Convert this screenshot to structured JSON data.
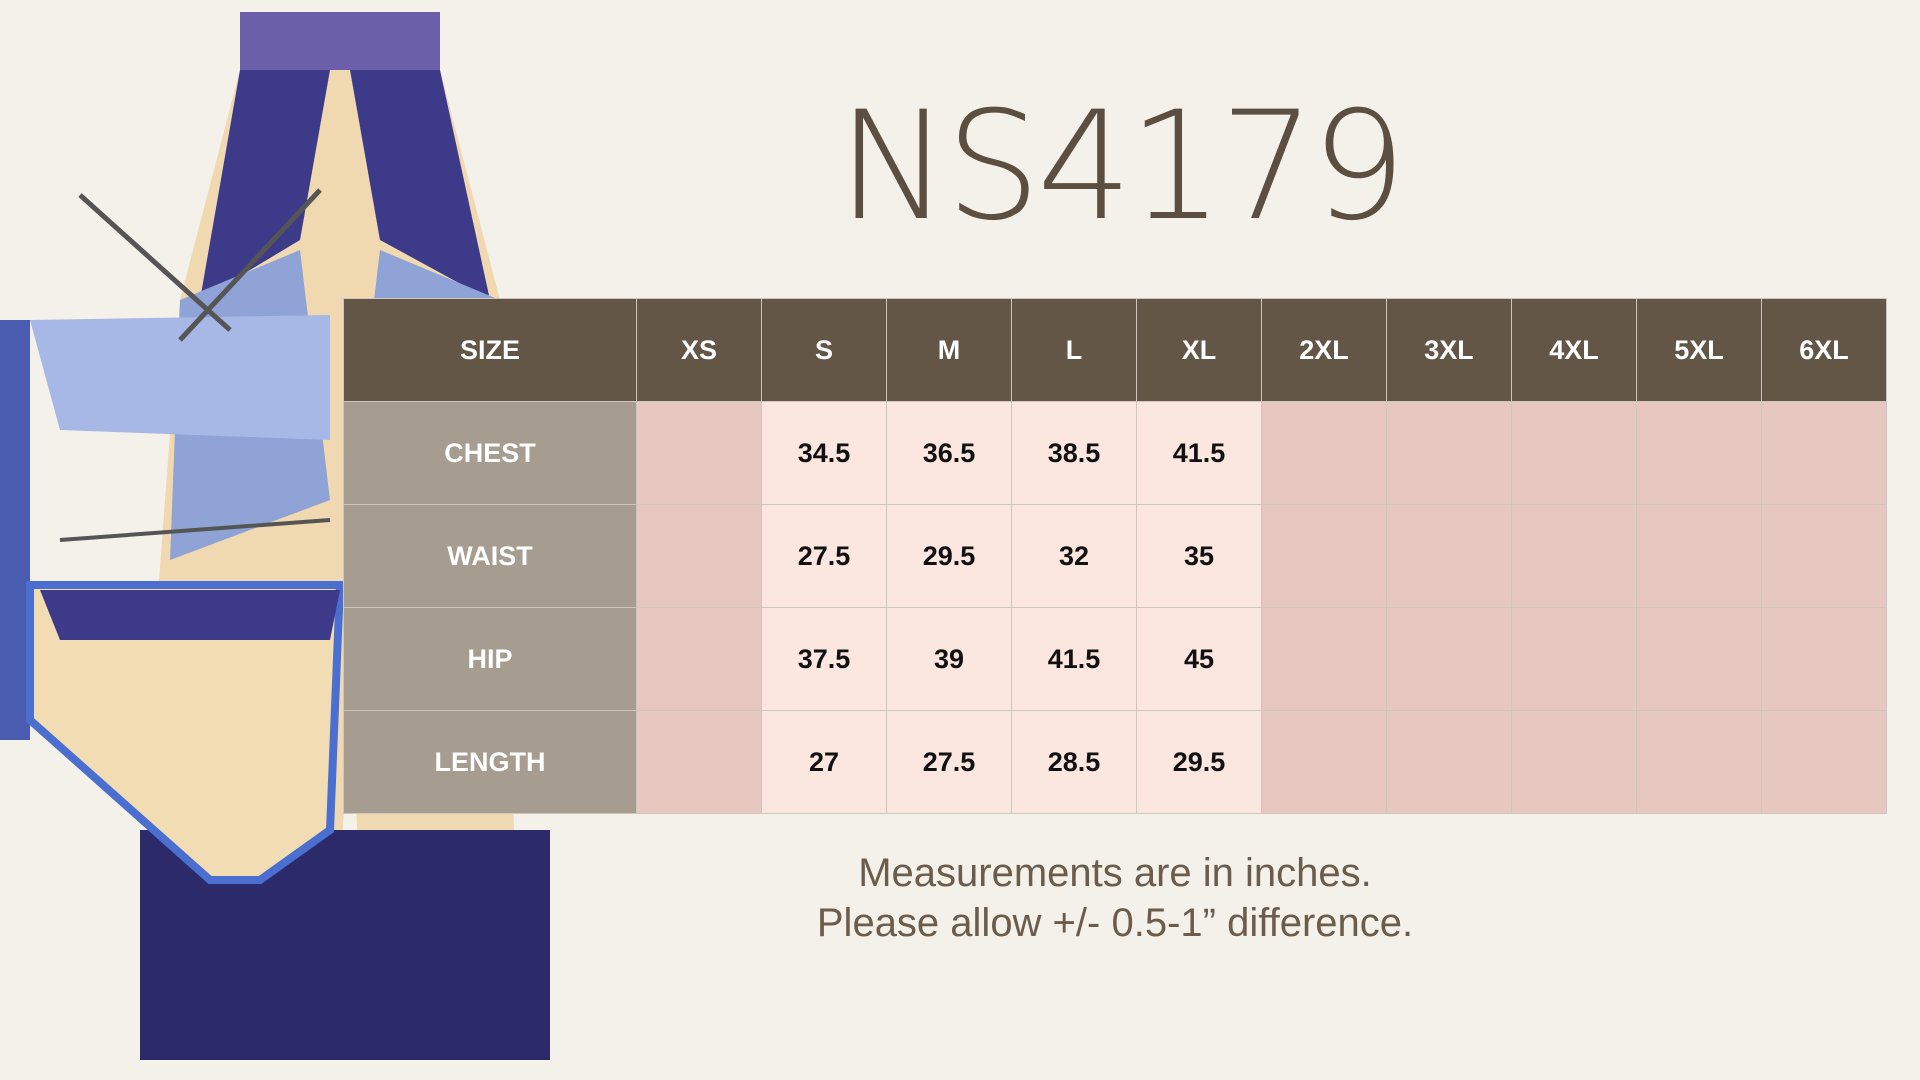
{
  "title": "NS4179",
  "table": {
    "headers": [
      "SIZE",
      "XS",
      "S",
      "M",
      "L",
      "XL",
      "2XL",
      "3XL",
      "4XL",
      "5XL",
      "6XL"
    ],
    "rows": [
      {
        "label": "CHEST",
        "values": [
          "",
          "34.5",
          "36.5",
          "38.5",
          "41.5",
          "",
          "",
          "",
          "",
          ""
        ]
      },
      {
        "label": "WAIST",
        "values": [
          "",
          "27.5",
          "29.5",
          "32",
          "35",
          "",
          "",
          "",
          "",
          ""
        ]
      },
      {
        "label": "HIP",
        "values": [
          "",
          "37.5",
          "39",
          "41.5",
          "45",
          "",
          "",
          "",
          "",
          ""
        ]
      },
      {
        "label": "LENGTH",
        "values": [
          "",
          "27",
          "27.5",
          "28.5",
          "29.5",
          "",
          "",
          "",
          "",
          ""
        ]
      }
    ]
  },
  "notes": [
    "Measurements are in inches.",
    "Please allow +/- 0.5-1” difference."
  ],
  "colors": {
    "header": "#635646",
    "label": "#a69c90",
    "filled": "#fbe7df",
    "empty": "#e6c8c0",
    "background": "#f4f1ea"
  }
}
